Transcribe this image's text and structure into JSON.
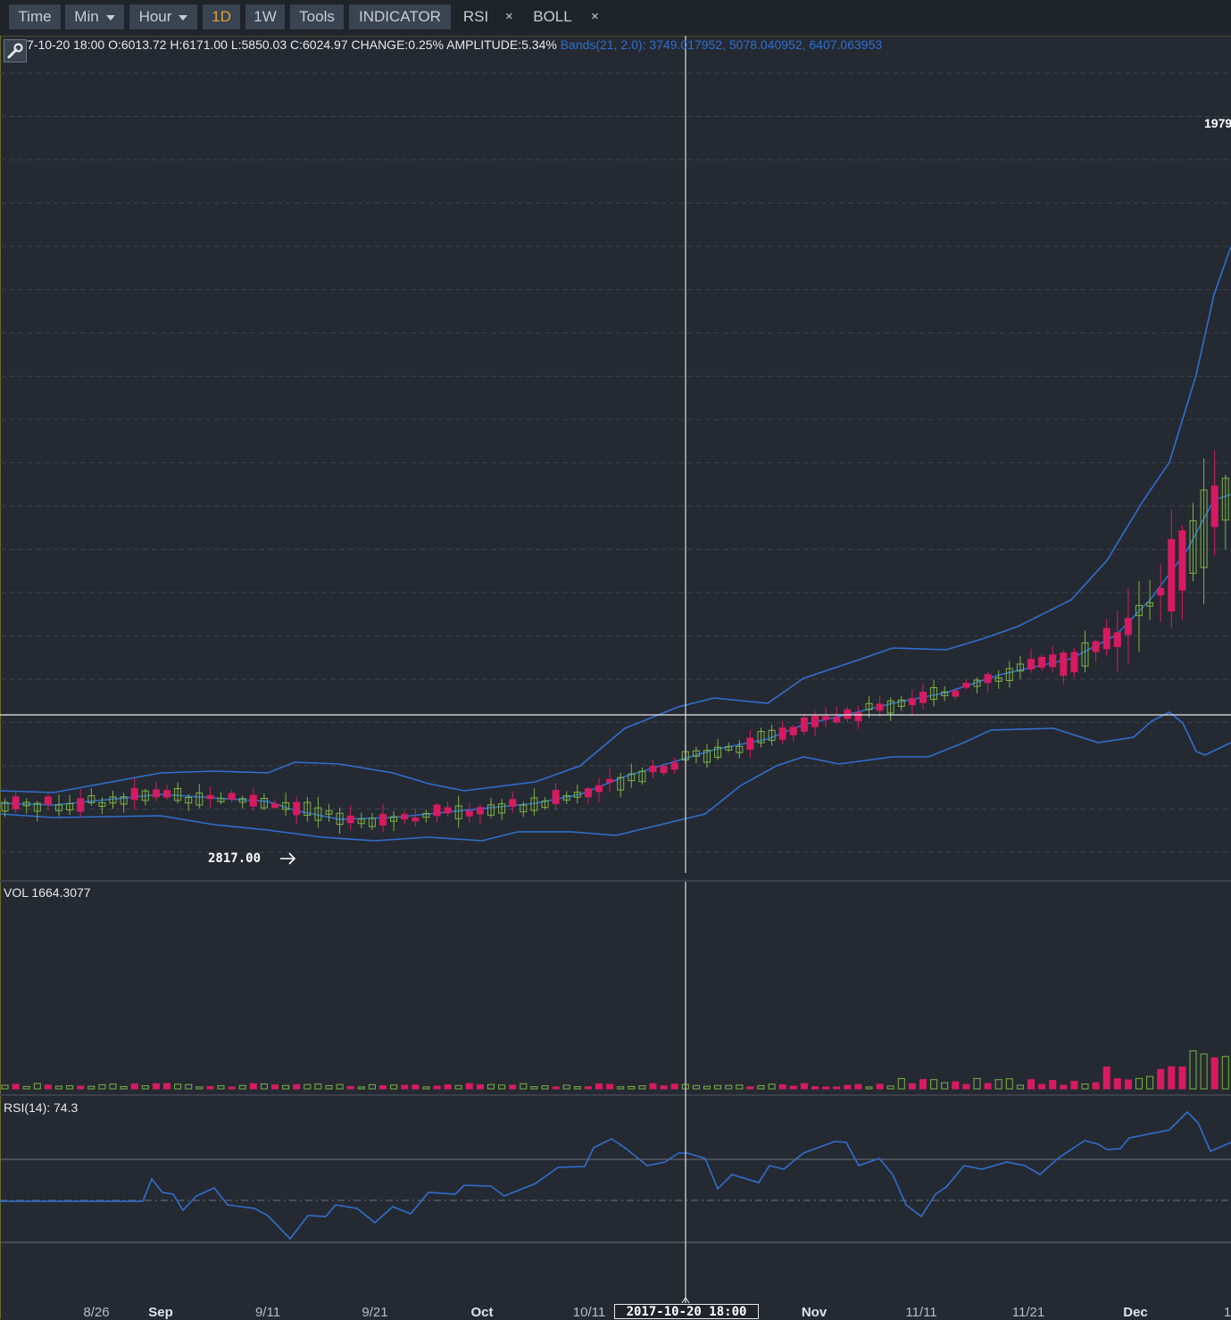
{
  "toolbar": {
    "time": "Time",
    "min": "Min",
    "hour": "Hour",
    "d1": "1D",
    "w1": "1W",
    "tools": "Tools",
    "indicator": "INDICATOR",
    "rsi": "RSI",
    "rsi_close": "×",
    "boll": "BOLL",
    "boll_close": "×"
  },
  "info": {
    "ohlc": "7-10-20 18:00    O:6013.72 H:6171.00 L:5850.03 C:6024.97 CHANGE:0.25% AMPLITUDE:5.34%",
    "boll": "Bands(21, 2.0): 3749.017952, 5078.040952, 6407.063953"
  },
  "labels": {
    "low_marker": "2817.00",
    "high_marker": "1979",
    "vol": "VOL 1664.3077",
    "rsi": "RSI(14): 74.3",
    "cursor_time": "2017-10-20 18:00"
  },
  "xaxis": [
    {
      "text": "8/26",
      "bold": false
    },
    {
      "text": "Sep",
      "bold": true
    },
    {
      "text": "9/11",
      "bold": false
    },
    {
      "text": "9/21",
      "bold": false
    },
    {
      "text": "Oct",
      "bold": true
    },
    {
      "text": "10/11",
      "bold": false
    },
    {
      "text": "Nov",
      "bold": true
    },
    {
      "text": "11/11",
      "bold": false
    },
    {
      "text": "11/21",
      "bold": false
    },
    {
      "text": "Dec",
      "bold": true
    },
    {
      "text": "1",
      "bold": false
    }
  ],
  "colors": {
    "up": "#7cb342",
    "down": "#d81b60",
    "band": "#2f6fd0",
    "grid": "#3a404a",
    "crosshair": "#d0d0d0"
  },
  "chart_data": {
    "type": "candlestick",
    "candles": [
      [
        6013.72,
        6171.0,
        5850.03,
        6024.97
      ]
    ],
    "boll_params": [
      21,
      2.0
    ],
    "boll_values": [
      3749.017952,
      5078.040952,
      6407.063953
    ],
    "low_marker_value": 2817.0,
    "volume_value": 1664.3077,
    "rsi_value": 74.3
  }
}
